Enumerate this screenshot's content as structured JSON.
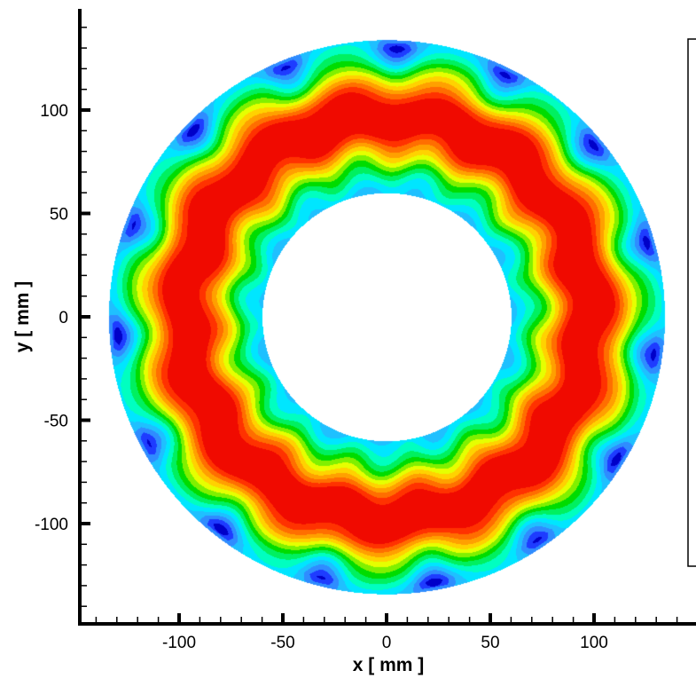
{
  "chart_data": {
    "type": "heatmap",
    "subtype": "filled contour on annulus",
    "xlabel": "x [ mm ]",
    "ylabel": "y [ mm ]",
    "xlim": [
      -148,
      149
    ],
    "ylim": [
      -148,
      149
    ],
    "xticks": [
      -100,
      -50,
      0,
      50,
      100
    ],
    "yticks": [
      -100,
      -50,
      0,
      50,
      100
    ],
    "minor_tick_step": 10,
    "grid": false,
    "annulus": {
      "inner_radius": 60,
      "outer_radius": 134,
      "peak_radius": 97,
      "lobes": 15
    },
    "colormap": [
      "#0000c8",
      "#1e3cff",
      "#2f8cff",
      "#1fc0ff",
      "#00e6ff",
      "#00ffc0",
      "#00f060",
      "#00dc00",
      "#80f000",
      "#e6ff00",
      "#ffd200",
      "#ffa000",
      "#ff6e00",
      "#ff3200",
      "#f00a00"
    ],
    "legend": "right (box clipped)"
  }
}
